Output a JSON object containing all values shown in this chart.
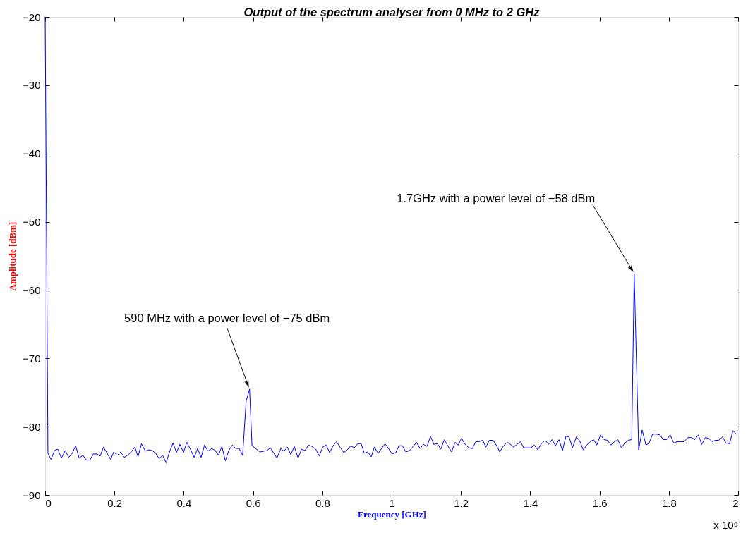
{
  "chart_data": {
    "type": "line",
    "title": "Output of the spectrum analyser from 0 MHz to 2 GHz",
    "xlabel": "Frequency [GHz]",
    "ylabel": "Amplitude [dBm]",
    "annotations": [
      {
        "text": "590 MHz with a power level of −75 dBm",
        "x": 0.59,
        "y": -74.5
      },
      {
        "text": "1.7GHz with a power level of −58 dBm",
        "x": 1.7,
        "y": -57.6
      },
      "x 10⁹"
    ],
    "x": [
      0,
      0.008,
      0.017,
      0.027,
      0.036,
      0.047,
      0.058,
      0.068,
      0.078,
      0.088,
      0.098,
      0.109,
      0.119,
      0.129,
      0.139,
      0.149,
      0.159,
      0.168,
      0.179,
      0.189,
      0.198,
      0.208,
      0.218,
      0.228,
      0.238,
      0.248,
      0.259,
      0.268,
      0.278,
      0.289,
      0.299,
      0.309,
      0.319,
      0.329,
      0.339,
      0.349,
      0.359,
      0.369,
      0.379,
      0.389,
      0.399,
      0.409,
      0.42,
      0.43,
      0.44,
      0.45,
      0.46,
      0.47,
      0.481,
      0.491,
      0.5,
      0.51,
      0.52,
      0.53,
      0.54,
      0.55,
      0.56,
      0.57,
      0.58,
      0.59,
      0.597,
      0.61,
      0.62,
      0.64,
      0.65,
      0.669,
      0.68,
      0.689,
      0.699,
      0.709,
      0.719,
      0.73,
      0.74,
      0.75,
      0.76,
      0.77,
      0.781,
      0.791,
      0.801,
      0.811,
      0.821,
      0.831,
      0.841,
      0.851,
      0.862,
      0.872,
      0.882,
      0.892,
      0.902,
      0.912,
      0.921,
      0.931,
      0.941,
      0.95,
      0.961,
      0.971,
      0.981,
      0.991,
      1.001,
      1.012,
      1.021,
      1.031,
      1.041,
      1.052,
      1.062,
      1.072,
      1.082,
      1.092,
      1.102,
      1.112,
      1.122,
      1.132,
      1.142,
      1.152,
      1.162,
      1.173,
      1.183,
      1.192,
      1.202,
      1.212,
      1.223,
      1.233,
      1.243,
      1.252,
      1.263,
      1.272,
      1.282,
      1.293,
      1.303,
      1.312,
      1.323,
      1.333,
      1.341,
      1.352,
      1.362,
      1.372,
      1.381,
      1.392,
      1.402,
      1.412,
      1.422,
      1.432,
      1.443,
      1.453,
      1.463,
      1.473,
      1.483,
      1.493,
      1.503,
      1.512,
      1.522,
      1.533,
      1.543,
      1.553,
      1.563,
      1.573,
      1.583,
      1.592,
      1.603,
      1.613,
      1.623,
      1.633,
      1.643,
      1.653,
      1.663,
      1.673,
      1.683,
      1.693,
      1.7,
      1.713,
      1.723,
      1.734,
      1.743,
      1.753,
      1.764,
      1.774,
      1.784,
      1.794,
      1.804,
      1.814,
      1.824,
      1.834,
      1.844,
      1.855,
      1.865,
      1.875,
      1.885,
      1.895,
      1.905,
      1.915,
      1.925,
      1.934,
      1.944,
      1.955,
      1.965,
      1.975,
      1.985,
      1.995
    ],
    "series": [
      {
        "color": "#0000ff",
        "values": [
          -20,
          -83.9,
          -84.8,
          -83.5,
          -83.3,
          -84.6,
          -83.5,
          -84.5,
          -83.9,
          -82.8,
          -84.6,
          -84.2,
          -84.9,
          -84.9,
          -84.0,
          -84.0,
          -84.3,
          -83.0,
          -83.9,
          -84.8,
          -83.7,
          -84.2,
          -83.7,
          -84.5,
          -84.2,
          -83.7,
          -83.0,
          -84.4,
          -82.5,
          -83.6,
          -83.4,
          -83.5,
          -83.9,
          -84.7,
          -84.2,
          -85.3,
          -83.7,
          -82.4,
          -83.8,
          -82.6,
          -83.8,
          -82.3,
          -83.4,
          -84.5,
          -83.2,
          -84.5,
          -82.7,
          -83.6,
          -83.2,
          -83.5,
          -84.2,
          -82.9,
          -85.0,
          -83.5,
          -82.7,
          -83.2,
          -83.2,
          -84.2,
          -76.3,
          -74.5,
          -82.8,
          -83.3,
          -83.7,
          -83.5,
          -83.1,
          -84.6,
          -83.2,
          -83.6,
          -83.0,
          -84.1,
          -82.9,
          -84.6,
          -83.3,
          -83.5,
          -82.7,
          -82.9,
          -83.3,
          -84.3,
          -83.0,
          -82.7,
          -83.8,
          -82.8,
          -82.2,
          -83.0,
          -83.8,
          -83.4,
          -82.8,
          -83.1,
          -82.5,
          -82.5,
          -83.9,
          -83.7,
          -84.4,
          -83.0,
          -83.9,
          -83.2,
          -82.5,
          -83.2,
          -84.0,
          -83.8,
          -82.8,
          -82.8,
          -83.7,
          -83.5,
          -82.9,
          -82.3,
          -83.2,
          -82.6,
          -82.9,
          -81.4,
          -82.6,
          -82.5,
          -83.3,
          -81.9,
          -82.8,
          -83.7,
          -82.3,
          -82.7,
          -81.7,
          -82.6,
          -83.1,
          -83.2,
          -82.2,
          -82.2,
          -82.0,
          -83.0,
          -82.0,
          -82.0,
          -82.8,
          -83.7,
          -82.8,
          -82.3,
          -82.5,
          -83.0,
          -82.6,
          -82.2,
          -83.1,
          -83.1,
          -83.1,
          -82.7,
          -83.4,
          -82.5,
          -82.0,
          -82.6,
          -81.9,
          -82.8,
          -81.9,
          -83.5,
          -81.4,
          -81.5,
          -83.1,
          -81.5,
          -82.1,
          -83.4,
          -82.7,
          -82.2,
          -81.9,
          -82.7,
          -81.2,
          -81.9,
          -82.0,
          -82.7,
          -82.2,
          -81.9,
          -83.1,
          -82.4,
          -82.0,
          -81.9,
          -57.6,
          -83.4,
          -80.5,
          -82.7,
          -82.4,
          -81.1,
          -81.1,
          -81.2,
          -81.9,
          -81.9,
          -81.2,
          -82.4,
          -82.2,
          -82.2,
          -82.2,
          -81.6,
          -81.6,
          -81.9,
          -81.2,
          -82.6,
          -81.6,
          -81.7,
          -82.2,
          -82.0,
          -82.0,
          -81.5,
          -82.4,
          -82.5,
          -80.6,
          -81.1
        ]
      }
    ],
    "xlim": [
      0,
      2
    ],
    "ylim": [
      -90,
      -20
    ],
    "xticks": [
      0,
      0.2,
      0.4,
      0.6,
      0.8,
      1,
      1.2,
      1.4,
      1.6,
      1.8,
      2
    ],
    "yticks": [
      -90,
      -80,
      -70,
      -60,
      -50,
      -40,
      -30,
      -20
    ],
    "line_style": "solid"
  }
}
